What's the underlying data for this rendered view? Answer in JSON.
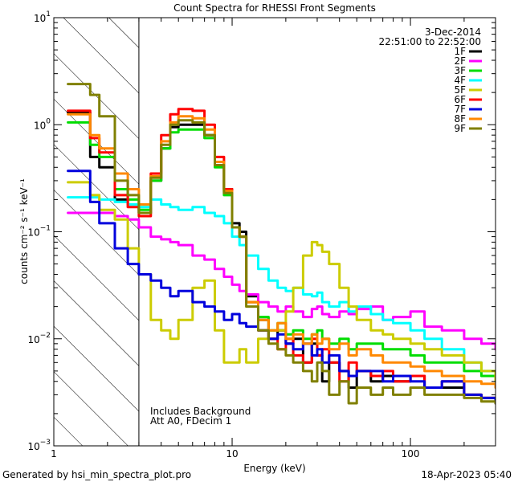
{
  "chart_data": {
    "type": "line",
    "title": "Count Spectra for RHESSI Front Segments",
    "xlabel": "Energy (keV)",
    "ylabel": "counts cm⁻² s⁻¹ keV⁻¹",
    "xscale": "log",
    "yscale": "log",
    "xlim": [
      1,
      300
    ],
    "ylim": [
      0.001,
      10
    ],
    "x_ticks": [
      {
        "value": 1,
        "label": "1"
      },
      {
        "value": 10,
        "label": "10"
      },
      {
        "value": 100,
        "label": "100"
      }
    ],
    "y_ticks": [
      {
        "value": 0.001,
        "base": "10",
        "exp": "−3"
      },
      {
        "value": 0.01,
        "base": "10",
        "exp": "−2"
      },
      {
        "value": 0.1,
        "base": "10",
        "exp": "−1"
      },
      {
        "value": 1,
        "base": "10",
        "exp": "0"
      },
      {
        "value": 10,
        "base": "10",
        "exp": "1"
      }
    ],
    "date": "3-Dec-2014",
    "time_range": "22:51:00 to 22:52:00",
    "attenuator_cutoff_kev": 3,
    "annotation_line1": "Includes Background",
    "annotation_line2": "Att A0, FDecim 1",
    "footer_left": "Generated by hsi_min_spectra_plot.pro",
    "footer_right": "18-Apr-2023 05:40",
    "series": [
      {
        "name": "1F",
        "color": "#000000",
        "x": [
          1.2,
          1.6,
          1.8,
          2.2,
          2.6,
          3,
          3.5,
          4,
          4.5,
          5,
          6,
          7,
          8,
          9,
          10,
          11,
          12,
          14,
          16,
          18,
          20,
          22,
          25,
          28,
          30,
          32,
          35,
          40,
          45,
          50,
          60,
          70,
          80,
          100,
          120,
          150,
          200,
          250,
          300
        ],
        "y": [
          1.3,
          0.5,
          0.4,
          0.2,
          0.18,
          0.15,
          0.3,
          0.6,
          0.95,
          1.0,
          1.0,
          0.8,
          0.45,
          0.25,
          0.12,
          0.1,
          0.025,
          0.015,
          0.01,
          0.012,
          0.009,
          0.01,
          0.006,
          0.009,
          0.007,
          0.004,
          0.006,
          0.005,
          0.0035,
          0.005,
          0.004,
          0.0045,
          0.004,
          0.0045,
          0.0035,
          0.0035,
          0.003,
          0.0028,
          0.0025
        ]
      },
      {
        "name": "2F",
        "color": "#ff00ff",
        "x": [
          1.2,
          1.6,
          1.8,
          2.2,
          2.6,
          3,
          3.5,
          4,
          4.5,
          5,
          6,
          7,
          8,
          9,
          10,
          11,
          12,
          14,
          16,
          18,
          20,
          22,
          25,
          28,
          30,
          32,
          35,
          40,
          45,
          50,
          60,
          70,
          80,
          100,
          120,
          150,
          200,
          250,
          300
        ],
        "y": [
          0.15,
          0.15,
          0.15,
          0.14,
          0.13,
          0.11,
          0.09,
          0.085,
          0.08,
          0.075,
          0.06,
          0.055,
          0.045,
          0.038,
          0.032,
          0.028,
          0.026,
          0.022,
          0.02,
          0.018,
          0.02,
          0.018,
          0.016,
          0.019,
          0.02,
          0.017,
          0.016,
          0.018,
          0.017,
          0.019,
          0.02,
          0.015,
          0.016,
          0.018,
          0.013,
          0.012,
          0.01,
          0.009,
          0.008
        ]
      },
      {
        "name": "3F",
        "color": "#00dd00",
        "x": [
          1.2,
          1.6,
          1.8,
          2.2,
          2.6,
          3,
          3.5,
          4,
          4.5,
          5,
          6,
          7,
          8,
          9,
          10,
          11,
          12,
          14,
          16,
          18,
          20,
          22,
          25,
          28,
          30,
          32,
          35,
          40,
          45,
          50,
          60,
          70,
          80,
          100,
          120,
          150,
          200,
          250,
          300
        ],
        "y": [
          1.05,
          0.65,
          0.5,
          0.25,
          0.2,
          0.16,
          0.3,
          0.6,
          0.85,
          0.9,
          0.9,
          0.75,
          0.4,
          0.22,
          0.11,
          0.09,
          0.022,
          0.016,
          0.012,
          0.014,
          0.011,
          0.012,
          0.01,
          0.011,
          0.012,
          0.01,
          0.009,
          0.01,
          0.008,
          0.009,
          0.009,
          0.008,
          0.008,
          0.007,
          0.006,
          0.006,
          0.005,
          0.0045,
          0.004
        ]
      },
      {
        "name": "4F",
        "color": "#00ffff",
        "x": [
          1.2,
          1.6,
          1.8,
          2.2,
          2.6,
          3,
          3.5,
          4,
          4.5,
          5,
          6,
          7,
          8,
          9,
          10,
          11,
          12,
          14,
          16,
          18,
          20,
          22,
          25,
          28,
          30,
          32,
          35,
          40,
          45,
          50,
          60,
          70,
          80,
          100,
          120,
          150,
          200,
          250,
          300
        ],
        "y": [
          0.21,
          0.21,
          0.2,
          0.19,
          0.18,
          0.17,
          0.2,
          0.18,
          0.17,
          0.16,
          0.17,
          0.15,
          0.14,
          0.12,
          0.09,
          0.075,
          0.06,
          0.045,
          0.035,
          0.03,
          0.028,
          0.03,
          0.026,
          0.025,
          0.027,
          0.022,
          0.02,
          0.022,
          0.018,
          0.02,
          0.017,
          0.015,
          0.014,
          0.012,
          0.01,
          0.008,
          0.006,
          0.005,
          0.0045
        ]
      },
      {
        "name": "5F",
        "color": "#cccc00",
        "x": [
          1.2,
          1.6,
          1.8,
          2.2,
          2.6,
          3,
          3.5,
          4,
          4.5,
          5,
          6,
          7,
          8,
          9,
          10,
          11,
          12,
          14,
          16,
          18,
          20,
          22,
          25,
          28,
          30,
          32,
          35,
          40,
          45,
          50,
          60,
          70,
          80,
          100,
          120,
          150,
          200,
          250,
          300
        ],
        "y": [
          0.29,
          0.22,
          0.16,
          0.13,
          0.07,
          0.04,
          0.015,
          0.012,
          0.01,
          0.015,
          0.03,
          0.035,
          0.012,
          0.006,
          0.006,
          0.008,
          0.006,
          0.01,
          0.012,
          0.012,
          0.018,
          0.03,
          0.06,
          0.08,
          0.075,
          0.065,
          0.05,
          0.03,
          0.02,
          0.015,
          0.012,
          0.011,
          0.01,
          0.009,
          0.008,
          0.007,
          0.006,
          0.005,
          0.004
        ]
      },
      {
        "name": "6F",
        "color": "#ff0000",
        "x": [
          1.2,
          1.6,
          1.8,
          2.2,
          2.6,
          3,
          3.5,
          4,
          4.5,
          5,
          6,
          7,
          8,
          9,
          10,
          11,
          12,
          14,
          16,
          18,
          20,
          22,
          25,
          28,
          30,
          32,
          35,
          40,
          45,
          50,
          60,
          70,
          80,
          100,
          120,
          150,
          200,
          250,
          300
        ],
        "y": [
          1.35,
          0.75,
          0.55,
          0.22,
          0.17,
          0.14,
          0.35,
          0.8,
          1.25,
          1.4,
          1.35,
          1.0,
          0.5,
          0.25,
          0.11,
          0.09,
          0.022,
          0.012,
          0.01,
          0.008,
          0.01,
          0.007,
          0.006,
          0.01,
          0.007,
          0.008,
          0.006,
          0.004,
          0.006,
          0.005,
          0.0045,
          0.005,
          0.004,
          0.0045,
          0.0035,
          0.004,
          0.003,
          0.0028,
          0.0025
        ]
      },
      {
        "name": "7F",
        "color": "#0000dd",
        "x": [
          1.2,
          1.6,
          1.8,
          2.2,
          2.6,
          3,
          3.5,
          4,
          4.5,
          5,
          6,
          7,
          8,
          9,
          10,
          11,
          12,
          14,
          16,
          18,
          20,
          22,
          25,
          28,
          30,
          32,
          35,
          40,
          45,
          50,
          60,
          70,
          80,
          100,
          120,
          150,
          200,
          250,
          300
        ],
        "y": [
          0.37,
          0.19,
          0.12,
          0.07,
          0.05,
          0.04,
          0.035,
          0.03,
          0.025,
          0.028,
          0.022,
          0.02,
          0.018,
          0.015,
          0.017,
          0.014,
          0.013,
          0.012,
          0.01,
          0.011,
          0.009,
          0.008,
          0.009,
          0.007,
          0.008,
          0.006,
          0.007,
          0.005,
          0.0045,
          0.005,
          0.005,
          0.004,
          0.0045,
          0.004,
          0.0035,
          0.004,
          0.003,
          0.0028,
          0.0025
        ]
      },
      {
        "name": "8F",
        "color": "#ff8800",
        "x": [
          1.2,
          1.6,
          1.8,
          2.2,
          2.6,
          3,
          3.5,
          4,
          4.5,
          5,
          6,
          7,
          8,
          9,
          10,
          11,
          12,
          14,
          16,
          18,
          20,
          22,
          25,
          28,
          30,
          32,
          35,
          40,
          45,
          50,
          60,
          70,
          80,
          100,
          120,
          150,
          200,
          250,
          300
        ],
        "y": [
          1.25,
          0.8,
          0.6,
          0.35,
          0.25,
          0.18,
          0.33,
          0.7,
          1.05,
          1.2,
          1.15,
          0.9,
          0.45,
          0.24,
          0.11,
          0.09,
          0.022,
          0.015,
          0.012,
          0.014,
          0.01,
          0.011,
          0.009,
          0.011,
          0.009,
          0.01,
          0.008,
          0.009,
          0.007,
          0.008,
          0.007,
          0.006,
          0.006,
          0.0055,
          0.005,
          0.0045,
          0.004,
          0.0038,
          0.0035
        ]
      },
      {
        "name": "9F",
        "color": "#808000",
        "x": [
          1.2,
          1.6,
          1.8,
          2.2,
          2.6,
          3,
          3.5,
          4,
          4.5,
          5,
          6,
          7,
          8,
          9,
          10,
          11,
          12,
          14,
          16,
          18,
          20,
          22,
          25,
          28,
          30,
          32,
          35,
          40,
          45,
          50,
          60,
          70,
          80,
          100,
          120,
          150,
          200,
          250,
          300
        ],
        "y": [
          2.4,
          1.9,
          1.2,
          0.3,
          0.22,
          0.15,
          0.32,
          0.65,
          1.0,
          1.1,
          1.05,
          0.8,
          0.42,
          0.23,
          0.11,
          0.09,
          0.02,
          0.012,
          0.009,
          0.008,
          0.007,
          0.006,
          0.005,
          0.004,
          0.006,
          0.005,
          0.003,
          0.004,
          0.0025,
          0.0035,
          0.003,
          0.0035,
          0.003,
          0.0035,
          0.003,
          0.003,
          0.0028,
          0.0026,
          0.0025
        ]
      }
    ]
  }
}
